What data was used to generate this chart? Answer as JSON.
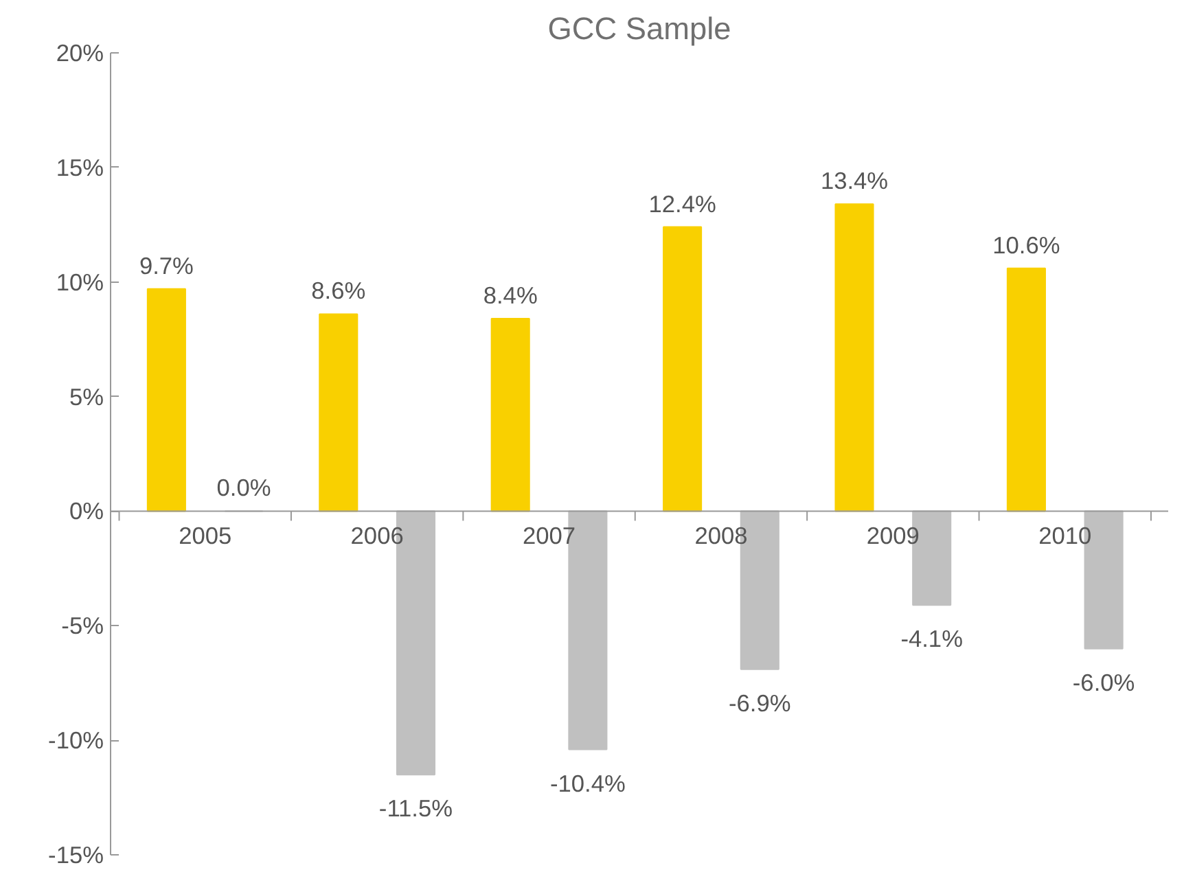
{
  "chart_data": {
    "type": "bar",
    "title": "GCC Sample",
    "categories": [
      "2005",
      "2006",
      "2007",
      "2008",
      "2009",
      "2010"
    ],
    "series": [
      {
        "color": "#f9d000",
        "values": [
          9.7,
          8.6,
          8.4,
          12.4,
          13.4,
          10.6
        ],
        "value_labels": [
          "9.7%",
          "8.6%",
          "8.4%",
          "12.4%",
          "13.4%",
          "10.6%"
        ]
      },
      {
        "color": "#c0c0c0",
        "values": [
          0.0,
          -11.5,
          -10.4,
          -6.9,
          -4.1,
          -6.0
        ],
        "value_labels": [
          "0.0%",
          "-11.5%",
          "-10.4%",
          "-6.9%",
          "-4.1%",
          "-6.0%"
        ]
      }
    ],
    "ylim": [
      -15,
      20
    ],
    "yticks": [
      {
        "value": -15,
        "label": "-15%"
      },
      {
        "value": -10,
        "label": "-10%"
      },
      {
        "value": -5,
        "label": "-5%"
      },
      {
        "value": 0,
        "label": "0%"
      },
      {
        "value": 5,
        "label": "5%"
      },
      {
        "value": 10,
        "label": "10%"
      },
      {
        "value": 15,
        "label": "15%"
      },
      {
        "value": 20,
        "label": "20%"
      }
    ],
    "grid": false
  }
}
